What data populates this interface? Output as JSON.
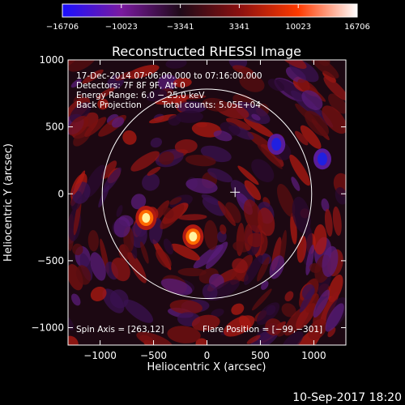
{
  "chart_data": {
    "type": "heatmap",
    "title": "Reconstructed RHESSI Image",
    "xlabel": "Heliocentric X (arcsec)",
    "ylabel": "Heliocentric Y (arcsec)",
    "xlim": [
      -1300,
      1300
    ],
    "ylim": [
      -1130,
      1000
    ],
    "x_ticks": [
      -1000,
      -500,
      0,
      500,
      1000
    ],
    "y_ticks": [
      1000,
      500,
      0,
      -500,
      -1000
    ],
    "x_tick_labels": [
      "−1000",
      "−500",
      "0",
      "500",
      "1000"
    ],
    "y_tick_labels": [
      "1000",
      "500",
      "0",
      "−500",
      "−1000"
    ],
    "colorbar": {
      "min": -16706,
      "max": 16706,
      "ticks": [
        -16706,
        -10023,
        -3341,
        3341,
        10023,
        16706
      ],
      "tick_labels": [
        "−16706",
        "−10023",
        "−3341",
        "3341",
        "10023",
        "16706"
      ],
      "colors": [
        "#1a10ff",
        "#7a1aa0",
        "#1e0a18",
        "#8a1010",
        "#ff3a00",
        "#ffffff"
      ]
    },
    "annotations": {
      "time_range": "17-Dec-2014 07:06:00.000 to 07:16:00.000",
      "detectors": "Detectors: 7F 8F 9F, Att 0",
      "energy_range": "Energy Range: 6.0 − 25.0 keV",
      "method": "Back Projection",
      "total_counts": "Total counts: 5.05E+04",
      "spin_axis": "Spin Axis = [263,12]",
      "flare_position": "Flare Position = [−99,−301]"
    },
    "solar_disk_radius": 980,
    "marker": {
      "x": 263,
      "y": 12
    },
    "sources": [
      {
        "x": -570,
        "y": -180,
        "value": 14000
      },
      {
        "x": -130,
        "y": -320,
        "value": 16706
      },
      {
        "x": 650,
        "y": 370,
        "value": -16000
      },
      {
        "x": 1080,
        "y": 260,
        "value": -12000
      }
    ]
  },
  "footer": {
    "timestamp": "10-Sep-2017 18:20"
  }
}
